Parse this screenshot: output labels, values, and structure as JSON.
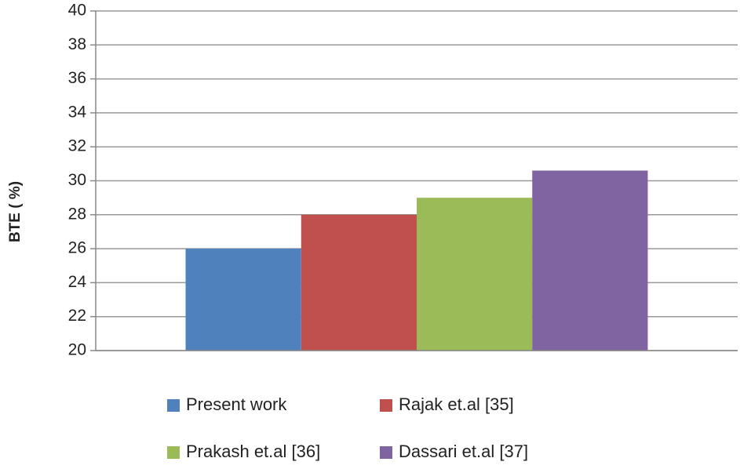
{
  "chart_data": {
    "type": "bar",
    "y_label": "BTE ( %)",
    "categories": [
      null
    ],
    "series": [
      {
        "name": "Present work",
        "color": "#4f81bd",
        "values": [
          26
        ]
      },
      {
        "name": "Rajak et.al [35]",
        "color": "#c0504d",
        "values": [
          28
        ]
      },
      {
        "name": "Prakash et.al [36]",
        "color": "#9bbb59",
        "values": [
          29
        ]
      },
      {
        "name": "Dassari et.al [37]",
        "color": "#8064a2",
        "values": [
          30.6
        ]
      }
    ],
    "ylim": [
      20,
      40
    ],
    "yticks": [
      20,
      22,
      24,
      26,
      28,
      30,
      32,
      34,
      36,
      38,
      40
    ],
    "grid": true,
    "legend": "bottom"
  }
}
